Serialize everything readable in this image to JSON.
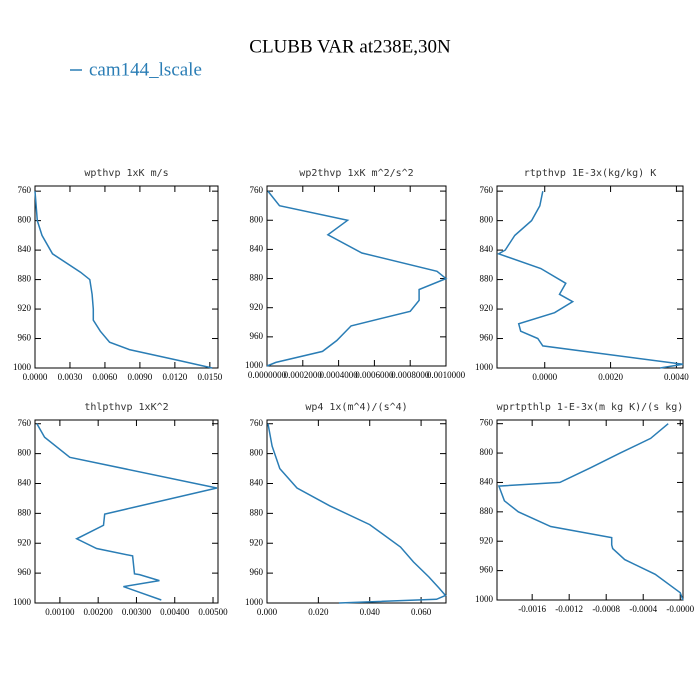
{
  "title": "CLUBB VAR at238E,30N",
  "legend_label": "cam144_lscale",
  "color": "#2a7db5",
  "chart_data": [
    {
      "type": "line",
      "title": "wpthvp  1xK m/s",
      "x": [
        0,
        0.0002,
        0.0006,
        0.0015,
        0.0039,
        0.0047,
        0.0049,
        0.005,
        0.005,
        0.0056,
        0.0064,
        0.0081,
        0.0124,
        0.0152
      ],
      "y": [
        760,
        800,
        820,
        845,
        870,
        880,
        900,
        920,
        935,
        950,
        965,
        975,
        990,
        1000
      ],
      "xlim": [
        0,
        0.0157
      ],
      "ylim": [
        1000,
        753
      ],
      "xticks": [
        {
          "value": 0,
          "label": "0.0000"
        },
        {
          "value": 0.003,
          "label": "0.0030"
        },
        {
          "value": 0.006,
          "label": "0.0060"
        },
        {
          "value": 0.009,
          "label": "0.0090"
        },
        {
          "value": 0.012,
          "label": "0.0120"
        },
        {
          "value": 0.015,
          "label": "0.0150"
        }
      ],
      "yticks": [
        760,
        800,
        840,
        880,
        920,
        960,
        1000
      ]
    },
    {
      "type": "line",
      "title": "wp2thvp  1xK m^2/s^2",
      "x": [
        5e-06,
        7e-05,
        0.00045,
        0.00034,
        0.00053,
        0.00095,
        0.001,
        0.00085,
        0.00085,
        0.0008,
        0.00047,
        0.00039,
        0.00031,
        5e-05,
        0
      ],
      "y": [
        760,
        780,
        800,
        820,
        845,
        870,
        880,
        895,
        910,
        925,
        945,
        965,
        980,
        995,
        1000
      ],
      "xlim": [
        0,
        0.001
      ],
      "ylim": [
        1000,
        753
      ],
      "xticks": [
        {
          "value": 0,
          "label": "0.0000000"
        },
        {
          "value": 0.0002,
          "label": "0.0002000"
        },
        {
          "value": 0.0004,
          "label": "0.0004000"
        },
        {
          "value": 0.0006,
          "label": "0.0006000"
        },
        {
          "value": 0.0008,
          "label": "0.0008000"
        },
        {
          "value": 0.001,
          "label": "0.0010000"
        }
      ],
      "yticks": [
        760,
        800,
        840,
        880,
        920,
        960,
        1000
      ]
    },
    {
      "type": "line",
      "title": "rtpthvp  1E-3x(kg/kg) K",
      "x": [
        -6e-05,
        -0.00015,
        -0.0004,
        -0.00091,
        -0.0012,
        -0.0014,
        -0.00012,
        0.00064,
        0.00045,
        0.00085,
        0.0003,
        -0.00079,
        -0.00073,
        -0.00021,
        -6e-05,
        0.0042,
        0.0035
      ],
      "y": [
        760,
        780,
        800,
        820,
        840,
        845,
        865,
        885,
        900,
        910,
        925,
        940,
        950,
        960,
        970,
        995,
        1000
      ],
      "xlim": [
        -0.00145,
        0.0042
      ],
      "ylim": [
        1000,
        753
      ],
      "xticks": [
        {
          "value": 0,
          "label": "0.0000"
        },
        {
          "value": 0.002,
          "label": "0.0020"
        },
        {
          "value": 0.004,
          "label": "0.0040"
        }
      ],
      "yticks": [
        760,
        800,
        840,
        880,
        920,
        960,
        1000
      ]
    },
    {
      "type": "line",
      "title": "thlpthvp  1xK^2",
      "x": [
        0.0004,
        0.0006,
        0.00126,
        0.0051,
        0.00217,
        0.00214,
        0.00144,
        0.00196,
        0.0029,
        0.00295,
        0.00308,
        0.0036,
        0.00266,
        0.00365
      ],
      "y": [
        760,
        778,
        805,
        846,
        881,
        896,
        914,
        927,
        937,
        961,
        962,
        970,
        978,
        996
      ],
      "xlim": [
        0.00035,
        0.00513
      ],
      "ylim": [
        1000,
        755
      ],
      "xticks": [
        {
          "value": 0.001,
          "label": "0.00100"
        },
        {
          "value": 0.002,
          "label": "0.00200"
        },
        {
          "value": 0.003,
          "label": "0.00300"
        },
        {
          "value": 0.004,
          "label": "0.00400"
        },
        {
          "value": 0.005,
          "label": "0.00500"
        }
      ],
      "yticks": [
        760,
        800,
        840,
        880,
        920,
        960,
        1000
      ]
    },
    {
      "type": "line",
      "title": "wp4  1x(m^4)/(s^4)",
      "x": [
        0.0004,
        0.002,
        0.005,
        0.0117,
        0.0245,
        0.04,
        0.052,
        0.057,
        0.063,
        0.067,
        0.0695,
        0.066,
        0.028
      ],
      "y": [
        760,
        790,
        820,
        846,
        870,
        895,
        925,
        945,
        965,
        980,
        990,
        995,
        1000
      ],
      "xlim": [
        0,
        0.0697
      ],
      "ylim": [
        1000,
        755
      ],
      "xticks": [
        {
          "value": 0,
          "label": "0.000"
        },
        {
          "value": 0.02,
          "label": "0.020"
        },
        {
          "value": 0.04,
          "label": "0.040"
        },
        {
          "value": 0.06,
          "label": "0.060"
        }
      ],
      "yticks": [
        760,
        800,
        840,
        880,
        920,
        960,
        1000
      ]
    },
    {
      "type": "line",
      "title": "wprtpthlp  1-E-3x(m kg K)/(s kg)",
      "x": [
        -0.00013,
        -0.00032,
        -0.00065,
        -0.00097,
        -0.0013,
        -0.00196,
        -0.0019,
        -0.00175,
        -0.0014,
        -0.00074,
        -0.00074,
        -0.00073,
        -0.0006,
        -0.00027,
        0,
        3e-05
      ],
      "y": [
        760,
        780,
        800,
        820,
        840,
        845,
        865,
        880,
        900,
        915,
        925,
        930,
        945,
        965,
        990,
        1000
      ],
      "xlim": [
        -0.00198,
        3e-05
      ],
      "ylim": [
        1000,
        755
      ],
      "xticks": [
        {
          "value": -0.0016,
          "label": "-0.0016"
        },
        {
          "value": -0.0012,
          "label": "-0.0012"
        },
        {
          "value": -0.0008,
          "label": "-0.0008"
        },
        {
          "value": -0.0004,
          "label": "-0.0004"
        },
        {
          "value": 0,
          "label": "-0.0000"
        }
      ],
      "yticks": [
        760,
        800,
        840,
        880,
        920,
        960,
        1000
      ]
    }
  ]
}
